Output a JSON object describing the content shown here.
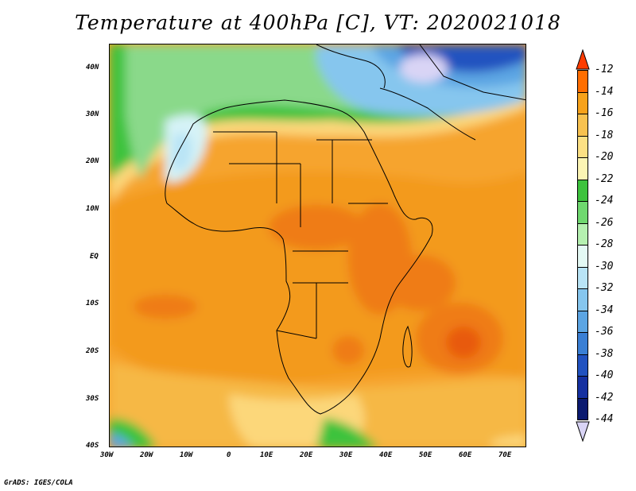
{
  "title": "Temperature at 400hPa [C], VT: 2020021018",
  "credit": "GrADS: IGES/COLA",
  "lat_labels": [
    "40N",
    "30N",
    "20N",
    "10N",
    "EQ",
    "10S",
    "20S",
    "30S",
    "40S"
  ],
  "lon_labels": [
    "30W",
    "20W",
    "10W",
    "0",
    "10E",
    "20E",
    "30E",
    "40E",
    "50E",
    "60E",
    "70E"
  ],
  "colorbar": {
    "labels": [
      "-12",
      "-14",
      "-16",
      "-18",
      "-20",
      "-22",
      "-24",
      "-26",
      "-28",
      "-30",
      "-32",
      "-34",
      "-36",
      "-38",
      "-40",
      "-42",
      "-44"
    ],
    "colors": [
      "#ff3c00",
      "#ff6e00",
      "#f7a21b",
      "#f8c250",
      "#fce084",
      "#fcf5b4",
      "#3dc33d",
      "#6fd86f",
      "#b5f0b0",
      "#e4f9f4",
      "#b9e4f6",
      "#86c6ee",
      "#5ca5e3",
      "#3a7fd4",
      "#2152c0",
      "#1530a0",
      "#0b1a70"
    ],
    "end_low_color": "#d9d4f5",
    "end_high_color": "#ff3c00"
  }
}
